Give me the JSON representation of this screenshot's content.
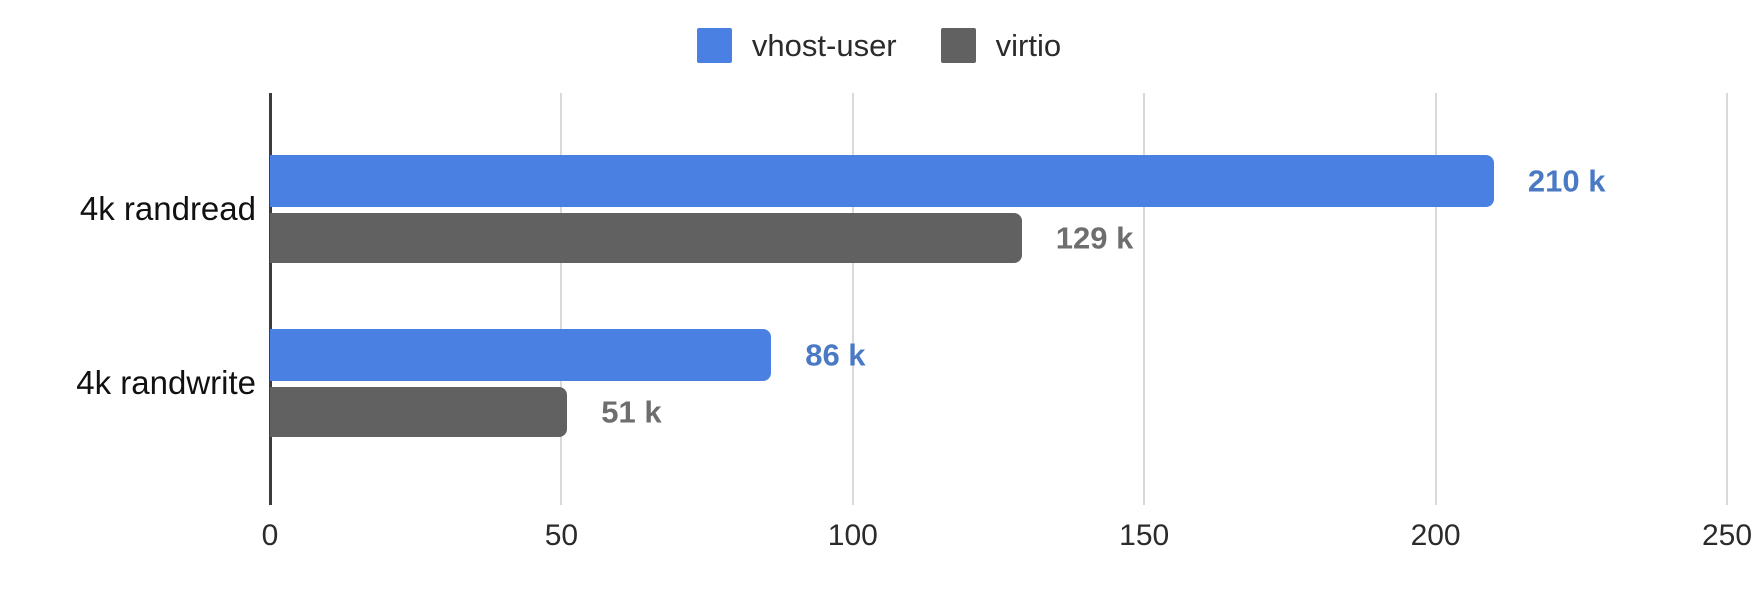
{
  "page": {
    "background_color": "#ffffff"
  },
  "legend": {
    "position": "top-center",
    "items": [
      {
        "label": "vhost-user",
        "color": "#4a80e2"
      },
      {
        "label": "virtio",
        "color": "#616161"
      }
    ]
  },
  "chart_data": {
    "type": "bar",
    "orientation": "horizontal",
    "title": "",
    "xlabel": "",
    "ylabel": "",
    "categories": [
      "4k randread",
      "4k randwrite"
    ],
    "series": [
      {
        "name": "vhost-user",
        "color": "#4a80e2",
        "label_color": "#4a7ac4",
        "values": [
          210,
          86
        ],
        "labels": [
          "210 k",
          "86 k"
        ]
      },
      {
        "name": "virtio",
        "color": "#616161",
        "label_color": "#6e6e6e",
        "values": [
          129,
          51
        ],
        "labels": [
          "129 k",
          "51 k"
        ]
      }
    ],
    "unit": "k",
    "xlim": [
      0,
      250
    ],
    "x_ticks": [
      0,
      50,
      100,
      150,
      200,
      250
    ],
    "x_tick_labels": [
      "0",
      "50",
      "100",
      "150",
      "200",
      "250"
    ],
    "grid": true,
    "gridline_color": "#d9d9d9",
    "baseline_color": "#3c3c3c",
    "legend_position": "top"
  }
}
